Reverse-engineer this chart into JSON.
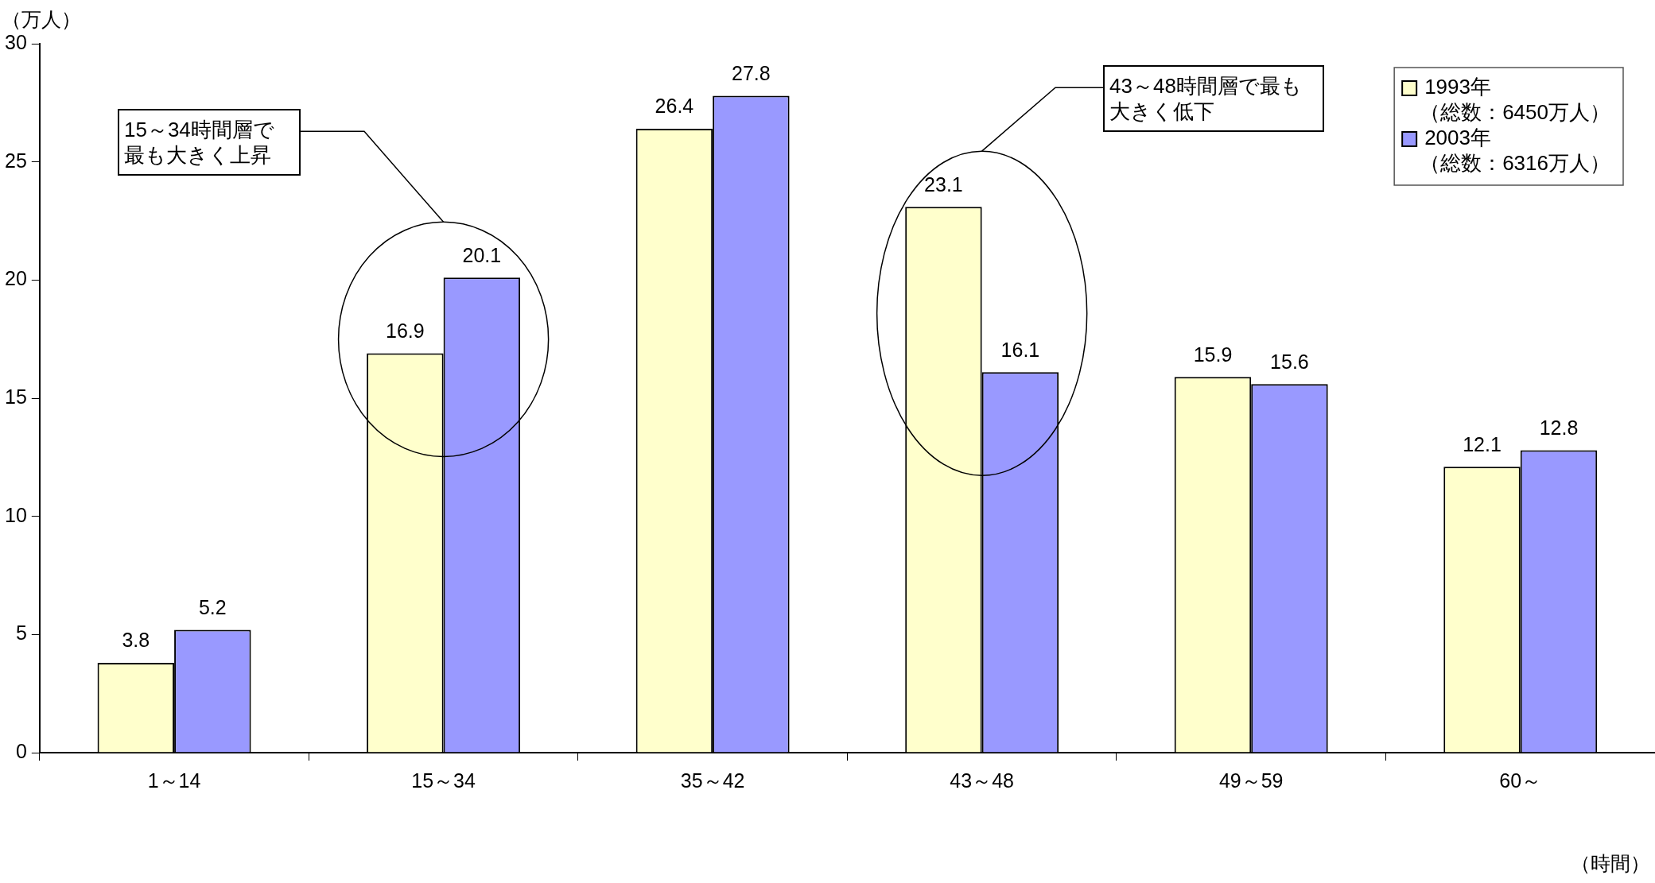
{
  "chart_data": {
    "type": "bar",
    "xlabel": "（時間）",
    "ylabel": "（万人）",
    "categories": [
      "1～14",
      "15～34",
      "35～42",
      "43～48",
      "49～59",
      "60～"
    ],
    "series": [
      {
        "name": "1993年（総数：6450万人）",
        "color": "#ffffcc",
        "values": [
          3.8,
          16.9,
          26.4,
          23.1,
          15.9,
          12.1
        ]
      },
      {
        "name": "2003年（総数：6316万人）",
        "color": "#9999ff",
        "values": [
          5.2,
          20.1,
          27.8,
          16.1,
          15.6,
          12.8
        ]
      }
    ],
    "ylim": [
      0,
      30
    ],
    "yticks": [
      0,
      5,
      10,
      15,
      20,
      25,
      30
    ],
    "grid": false,
    "legend": "top right",
    "data_labels": true,
    "annotations": [
      "15～34時間層で最も大きく上昇",
      "43～48時間層で最も大きく低下"
    ]
  }
}
